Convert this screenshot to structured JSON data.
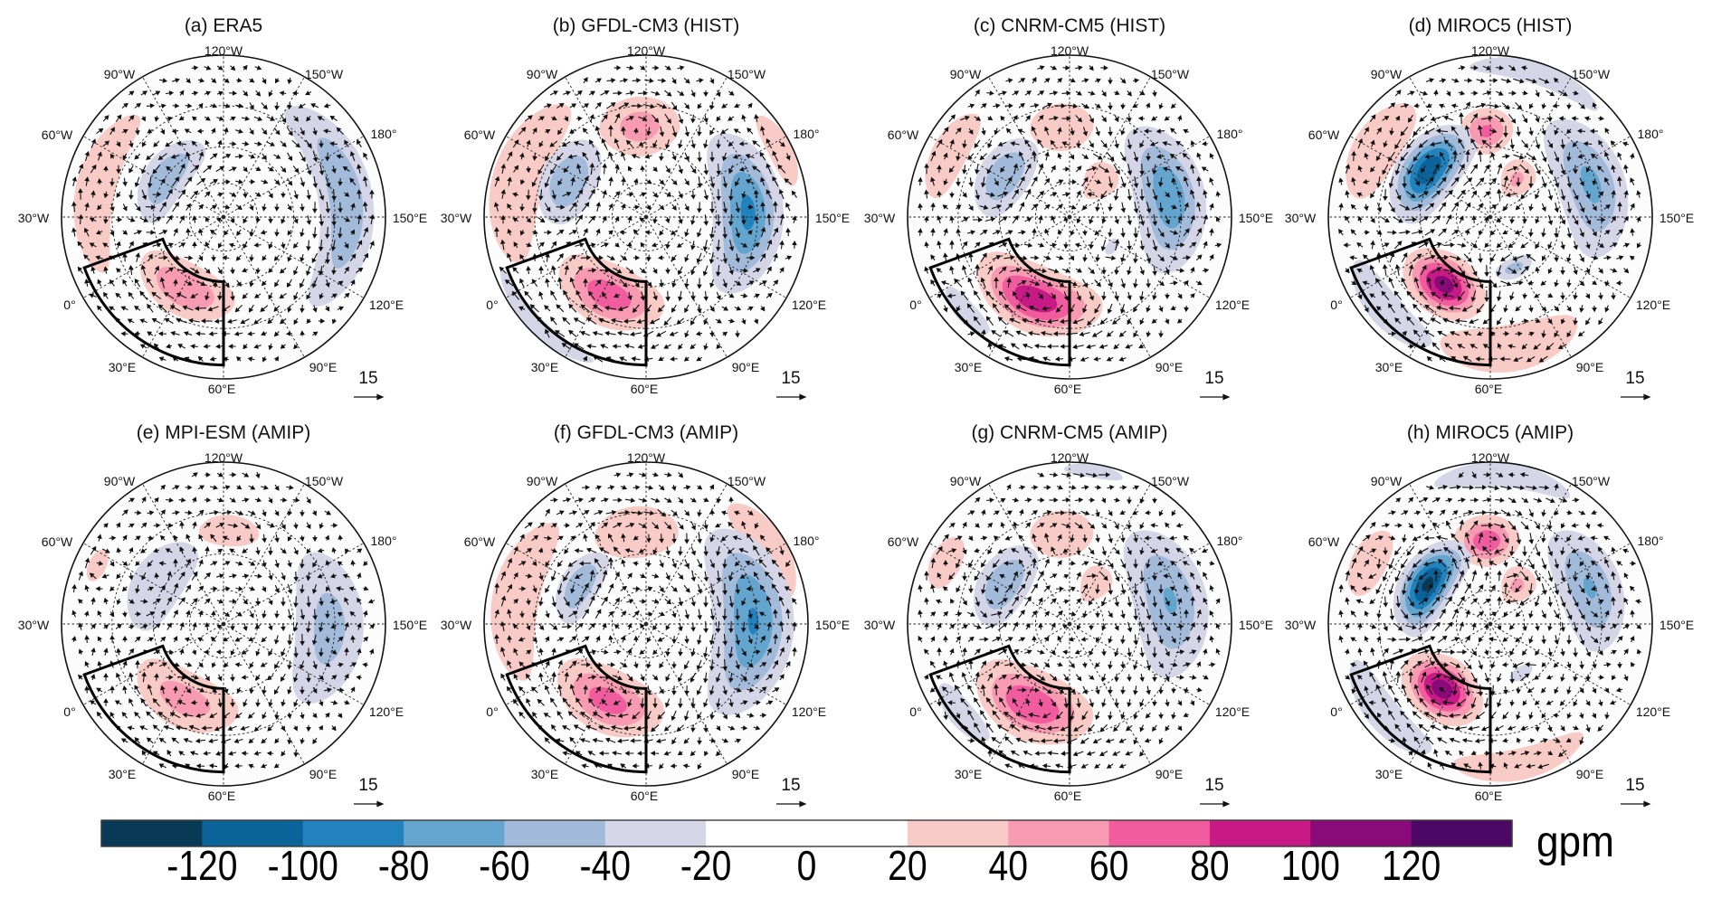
{
  "map": {
    "projection": "north-polar-stereographic",
    "boundary_lat": 10,
    "lat_circles": [
      30,
      50,
      70
    ],
    "meridian_step": 30,
    "lon_labels": [
      "120°W",
      "150°W",
      "180°",
      "150°E",
      "120°E",
      "90°E",
      "60°E",
      "30°E",
      "0°",
      "30°W",
      "60°W",
      "90°W"
    ],
    "box": {
      "lon": [
        -10,
        60
      ],
      "lat": [
        15,
        53
      ]
    }
  },
  "reference_vector": {
    "label": "15",
    "value": 15
  },
  "colorbar": {
    "levels": [
      -140,
      -120,
      -100,
      -80,
      -60,
      -40,
      -20,
      0,
      20,
      40,
      60,
      80,
      100,
      120,
      140
    ],
    "colors": [
      "#083a56",
      "#0b6399",
      "#2182bd",
      "#64a5cf",
      "#a3bbdb",
      "#d5d5e8",
      "#ffffff",
      "#ffffff",
      "#f9cbc6",
      "#f89bb2",
      "#f05c9e",
      "#c81a86",
      "#8a0a79",
      "#4d0765"
    ],
    "tick_labels": [
      "-120",
      "-100",
      "-80",
      "-60",
      "-40",
      "-20",
      "0",
      "20",
      "40",
      "60",
      "80",
      "100",
      "120"
    ],
    "unit": "gpm"
  },
  "chart_data": [
    {
      "type": "heatmap",
      "title": "(a) ERA5",
      "unit": "gpm",
      "anomalies": [
        {
          "lon": [
            -80,
            -5
          ],
          "lat": [
            14,
            30
          ],
          "peak": 25
        },
        {
          "lon": [
            -5,
            68
          ],
          "lat": [
            31,
            58
          ],
          "peak": 60
        },
        {
          "lon": [
            -105,
            -25
          ],
          "lat": [
            39,
            62
          ],
          "peak": -60
        },
        {
          "lon": [
            105,
            -150
          ],
          "lat": [
            14,
            37
          ],
          "peak": -60
        }
      ]
    },
    {
      "type": "heatmap",
      "title": "(b) GFDL-CM3 (HIST)",
      "unit": "gpm",
      "anomalies": [
        {
          "lon": [
            -85,
            -10
          ],
          "lat": [
            11,
            32
          ],
          "peak": 25
        },
        {
          "lon": [
            -141,
            -91
          ],
          "lat": [
            26,
            55
          ],
          "peak": 50
        },
        {
          "lon": [
            162,
            -168
          ],
          "lat": [
            10,
            19
          ],
          "peak": 22
        },
        {
          "lon": [
            -85,
            -25
          ],
          "lat": [
            29,
            57
          ],
          "peak": -60
        },
        {
          "lon": [
            105,
            -160
          ],
          "lat": [
            19,
            52
          ],
          "peak": -85
        },
        {
          "lon": [
            -10,
            40
          ],
          "lat": [
            10,
            16
          ],
          "peak": -25
        },
        {
          "lon": [
            -3,
            72
          ],
          "lat": [
            27,
            58
          ],
          "peak": 75
        }
      ]
    },
    {
      "type": "heatmap",
      "title": "(c) CNRM-CM5 (HIST)",
      "unit": "gpm",
      "anomalies": [
        {
          "lon": [
            -78,
            -38
          ],
          "lat": [
            13,
            27
          ],
          "peak": 25
        },
        {
          "lon": [
            -135,
            -95
          ],
          "lat": [
            29,
            52
          ],
          "peak": 30
        },
        {
          "lon": [
            -180,
            -140
          ],
          "lat": [
            52,
            75
          ],
          "peak": 28
        },
        {
          "lon": [
            -95,
            -30
          ],
          "lat": [
            34,
            60
          ],
          "peak": -60
        },
        {
          "lon": [
            118,
            -155
          ],
          "lat": [
            19,
            52
          ],
          "peak": -75
        },
        {
          "lon": [
            105,
            125
          ],
          "lat": [
            57,
            63
          ],
          "peak": -25
        },
        {
          "lon": [
            -6,
            81
          ],
          "lat": [
            25,
            58
          ],
          "peak": 95
        },
        {
          "lon": [
            0,
            25
          ],
          "lat": [
            14,
            22
          ],
          "peak": -25
        }
      ]
    },
    {
      "type": "heatmap",
      "title": "(d) MIROC5 (HIST)",
      "unit": "gpm",
      "anomalies": [
        {
          "lon": [
            -165,
            -112
          ],
          "lat": [
            10,
            18
          ],
          "peak": -25
        },
        {
          "lon": [
            -85,
            -38
          ],
          "lat": [
            12,
            31
          ],
          "peak": 25
        },
        {
          "lon": [
            -135,
            -100
          ],
          "lat": [
            31,
            54
          ],
          "peak": 65
        },
        {
          "lon": [
            -175,
            -135
          ],
          "lat": [
            52,
            75
          ],
          "peak": 45
        },
        {
          "lon": [
            -110,
            -25
          ],
          "lat": [
            31,
            63
          ],
          "peak": -115
        },
        {
          "lon": [
            128,
            -152
          ],
          "lat": [
            18,
            49
          ],
          "peak": -65
        },
        {
          "lon": [
            65,
            105
          ],
          "lat": [
            52,
            63
          ],
          "peak": -50
        },
        {
          "lon": [
            -6,
            57
          ],
          "lat": [
            29,
            61
          ],
          "peak": 110
        },
        {
          "lon": [
            38,
            100
          ],
          "lat": [
            12,
            31
          ],
          "peak": 30
        },
        {
          "lon": [
            -12,
            35
          ],
          "lat": [
            12,
            25
          ],
          "peak": -25
        }
      ]
    },
    {
      "type": "heatmap",
      "title": "(e) MPI-ESM (AMIP)",
      "unit": "gpm",
      "anomalies": [
        {
          "lon": [
            -62,
            -48
          ],
          "lat": [
            15,
            22
          ],
          "peak": 22
        },
        {
          "lon": [
            -142,
            -105
          ],
          "lat": [
            31,
            46
          ],
          "peak": 25
        },
        {
          "lon": [
            -100,
            -25
          ],
          "lat": [
            34,
            60
          ],
          "peak": -35
        },
        {
          "lon": [
            105,
            -170
          ],
          "lat": [
            18,
            49
          ],
          "peak": -48
        },
        {
          "lon": [
            -5,
            70
          ],
          "lat": [
            29,
            57
          ],
          "peak": 50
        }
      ]
    },
    {
      "type": "heatmap",
      "title": "(f) GFDL-CM3 (AMIP)",
      "unit": "gpm",
      "anomalies": [
        {
          "lon": [
            -78,
            -5
          ],
          "lat": [
            12,
            31
          ],
          "peak": 25
        },
        {
          "lon": [
            -140,
            -88
          ],
          "lat": [
            27,
            52
          ],
          "peak": 40
        },
        {
          "lon": [
            160,
            -155
          ],
          "lat": [
            10,
            24
          ],
          "peak": 25
        },
        {
          "lon": [
            -90,
            -30
          ],
          "lat": [
            37,
            57
          ],
          "peak": -60
        },
        {
          "lon": [
            98,
            -155
          ],
          "lat": [
            15,
            52
          ],
          "peak": -82
        },
        {
          "lon": [
            -5,
            72
          ],
          "lat": [
            27,
            59
          ],
          "peak": 70
        }
      ]
    },
    {
      "type": "heatmap",
      "title": "(g) CNRM-CM5 (AMIP)",
      "unit": "gpm",
      "anomalies": [
        {
          "lon": [
            -68,
            -45
          ],
          "lat": [
            13,
            25
          ],
          "peak": 22
        },
        {
          "lon": [
            -135,
            -95
          ],
          "lat": [
            29,
            52
          ],
          "peak": 25
        },
        {
          "lon": [
            -170,
            -135
          ],
          "lat": [
            52,
            74
          ],
          "peak": 22
        },
        {
          "lon": [
            -95,
            -28
          ],
          "lat": [
            34,
            60
          ],
          "peak": -60
        },
        {
          "lon": [
            120,
            -154
          ],
          "lat": [
            18,
            52
          ],
          "peak": -62
        },
        {
          "lon": [
            -5,
            25
          ],
          "lat": [
            13,
            23
          ],
          "peak": -25
        },
        {
          "lon": [
            -5,
            75
          ],
          "lat": [
            24,
            59
          ],
          "peak": 80
        },
        {
          "lon": [
            -140,
            -118
          ],
          "lat": [
            10,
            15
          ],
          "peak": -22
        }
      ]
    },
    {
      "type": "heatmap",
      "title": "(h) MIROC5 (AMIP)",
      "unit": "gpm",
      "anomalies": [
        {
          "lon": [
            -152,
            -98
          ],
          "lat": [
            10,
            19
          ],
          "peak": -30
        },
        {
          "lon": [
            -72,
            -42
          ],
          "lat": [
            13,
            27
          ],
          "peak": 25
        },
        {
          "lon": [
            -140,
            -95
          ],
          "lat": [
            31,
            57
          ],
          "peak": 75
        },
        {
          "lon": [
            -175,
            -135
          ],
          "lat": [
            52,
            74
          ],
          "peak": 45
        },
        {
          "lon": [
            -105,
            -20
          ],
          "lat": [
            34,
            63
          ],
          "peak": -125
        },
        {
          "lon": [
            135,
            -155
          ],
          "lat": [
            19,
            48
          ],
          "peak": -62
        },
        {
          "lon": [
            80,
            105
          ],
          "lat": [
            53,
            60
          ],
          "peak": -25
        },
        {
          "lon": [
            -8,
            55
          ],
          "lat": [
            29,
            62
          ],
          "peak": 112
        },
        {
          "lon": [
            45,
            100
          ],
          "lat": [
            11,
            23
          ],
          "peak": 28
        },
        {
          "lon": [
            -15,
            35
          ],
          "lat": [
            12,
            25
          ],
          "peak": -25
        }
      ]
    }
  ]
}
